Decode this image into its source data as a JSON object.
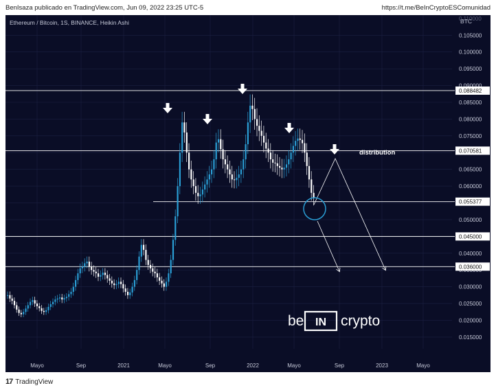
{
  "header": {
    "left_text": "BenIsaza publicado en TradingView.com, Jun 09, 2022 23:25 UTC-5",
    "right_text": "https://t.me/BeInCryptoESComunidad"
  },
  "footer": {
    "logo_text": "TradingView",
    "logo_icon": "tradingview-logo-icon"
  },
  "colors": {
    "background": "#0a0d26",
    "up_candle": "#2a9fd6",
    "down_candle": "#ffffff",
    "level_line": "#ffffff",
    "price_label_bg": "#ffffff",
    "circle": "#2a9fd6"
  },
  "chart_data": {
    "type": "candlestick",
    "title": "Ethereum / Bitcoin, 1S, BINANCE, Heikin Ashi",
    "y_unit": "BTC",
    "y_ticks": [
      "0.105000",
      "0.100000",
      "0.095000",
      "0.090000",
      "0.085000",
      "0.080000",
      "0.075000",
      "0.070000",
      "0.065000",
      "0.060000",
      "0.055000",
      "0.050000",
      "0.045000",
      "0.040000",
      "0.035000",
      "0.030000",
      "0.025000",
      "0.020000",
      "0.015000"
    ],
    "top_tick_partial": "0.110000",
    "x_ticks": [
      "Mayo",
      "Sep",
      "2021",
      "Mayo",
      "Sep",
      "2022",
      "Mayo",
      "Sep",
      "2023",
      "Mayo"
    ],
    "ylim": [
      0.0115,
      0.111
    ],
    "horizontal_levels": [
      {
        "value": 0.088482,
        "label": "0.088482"
      },
      {
        "value": 0.070581,
        "label": "0.070581"
      },
      {
        "value": 0.055377,
        "label": "0.055377"
      },
      {
        "value": 0.045,
        "label": "0.045000"
      },
      {
        "value": 0.036,
        "label": "0.036000"
      }
    ],
    "annotation_text": "distribution",
    "watermark": {
      "left": "be",
      "middle": "IN",
      "right": "crypto"
    },
    "closes": [
      0.0275,
      0.0265,
      0.0258,
      0.0245,
      0.0232,
      0.0222,
      0.0218,
      0.0225,
      0.0235,
      0.0245,
      0.0255,
      0.026,
      0.025,
      0.0242,
      0.0236,
      0.0228,
      0.0225,
      0.023,
      0.024,
      0.0248,
      0.0255,
      0.0262,
      0.0265,
      0.0268,
      0.0262,
      0.0266,
      0.027,
      0.0278,
      0.0285,
      0.03,
      0.032,
      0.034,
      0.0355,
      0.036,
      0.037,
      0.0375,
      0.036,
      0.035,
      0.0345,
      0.034,
      0.033,
      0.0335,
      0.0342,
      0.0335,
      0.0325,
      0.0318,
      0.031,
      0.0305,
      0.0308,
      0.0315,
      0.0308,
      0.0295,
      0.0285,
      0.0275,
      0.0283,
      0.03,
      0.032,
      0.035,
      0.039,
      0.0425,
      0.041,
      0.038,
      0.0365,
      0.0355,
      0.0345,
      0.034,
      0.0328,
      0.0318,
      0.031,
      0.03,
      0.0315,
      0.034,
      0.038,
      0.044,
      0.051,
      0.06,
      0.07,
      0.079,
      0.076,
      0.07,
      0.065,
      0.062,
      0.06,
      0.058,
      0.057,
      0.0575,
      0.059,
      0.0605,
      0.062,
      0.0635,
      0.065,
      0.068,
      0.073,
      0.074,
      0.071,
      0.068,
      0.0665,
      0.065,
      0.0635,
      0.062,
      0.0618,
      0.0625,
      0.0635,
      0.065,
      0.068,
      0.0725,
      0.079,
      0.084,
      0.083,
      0.08,
      0.078,
      0.0765,
      0.075,
      0.073,
      0.0712,
      0.07,
      0.068,
      0.067,
      0.0668,
      0.066,
      0.0655,
      0.065,
      0.0655,
      0.0665,
      0.068,
      0.07,
      0.072,
      0.0735,
      0.0742,
      0.0738,
      0.0728,
      0.07,
      0.066,
      0.062,
      0.058,
      0.0565
    ]
  }
}
